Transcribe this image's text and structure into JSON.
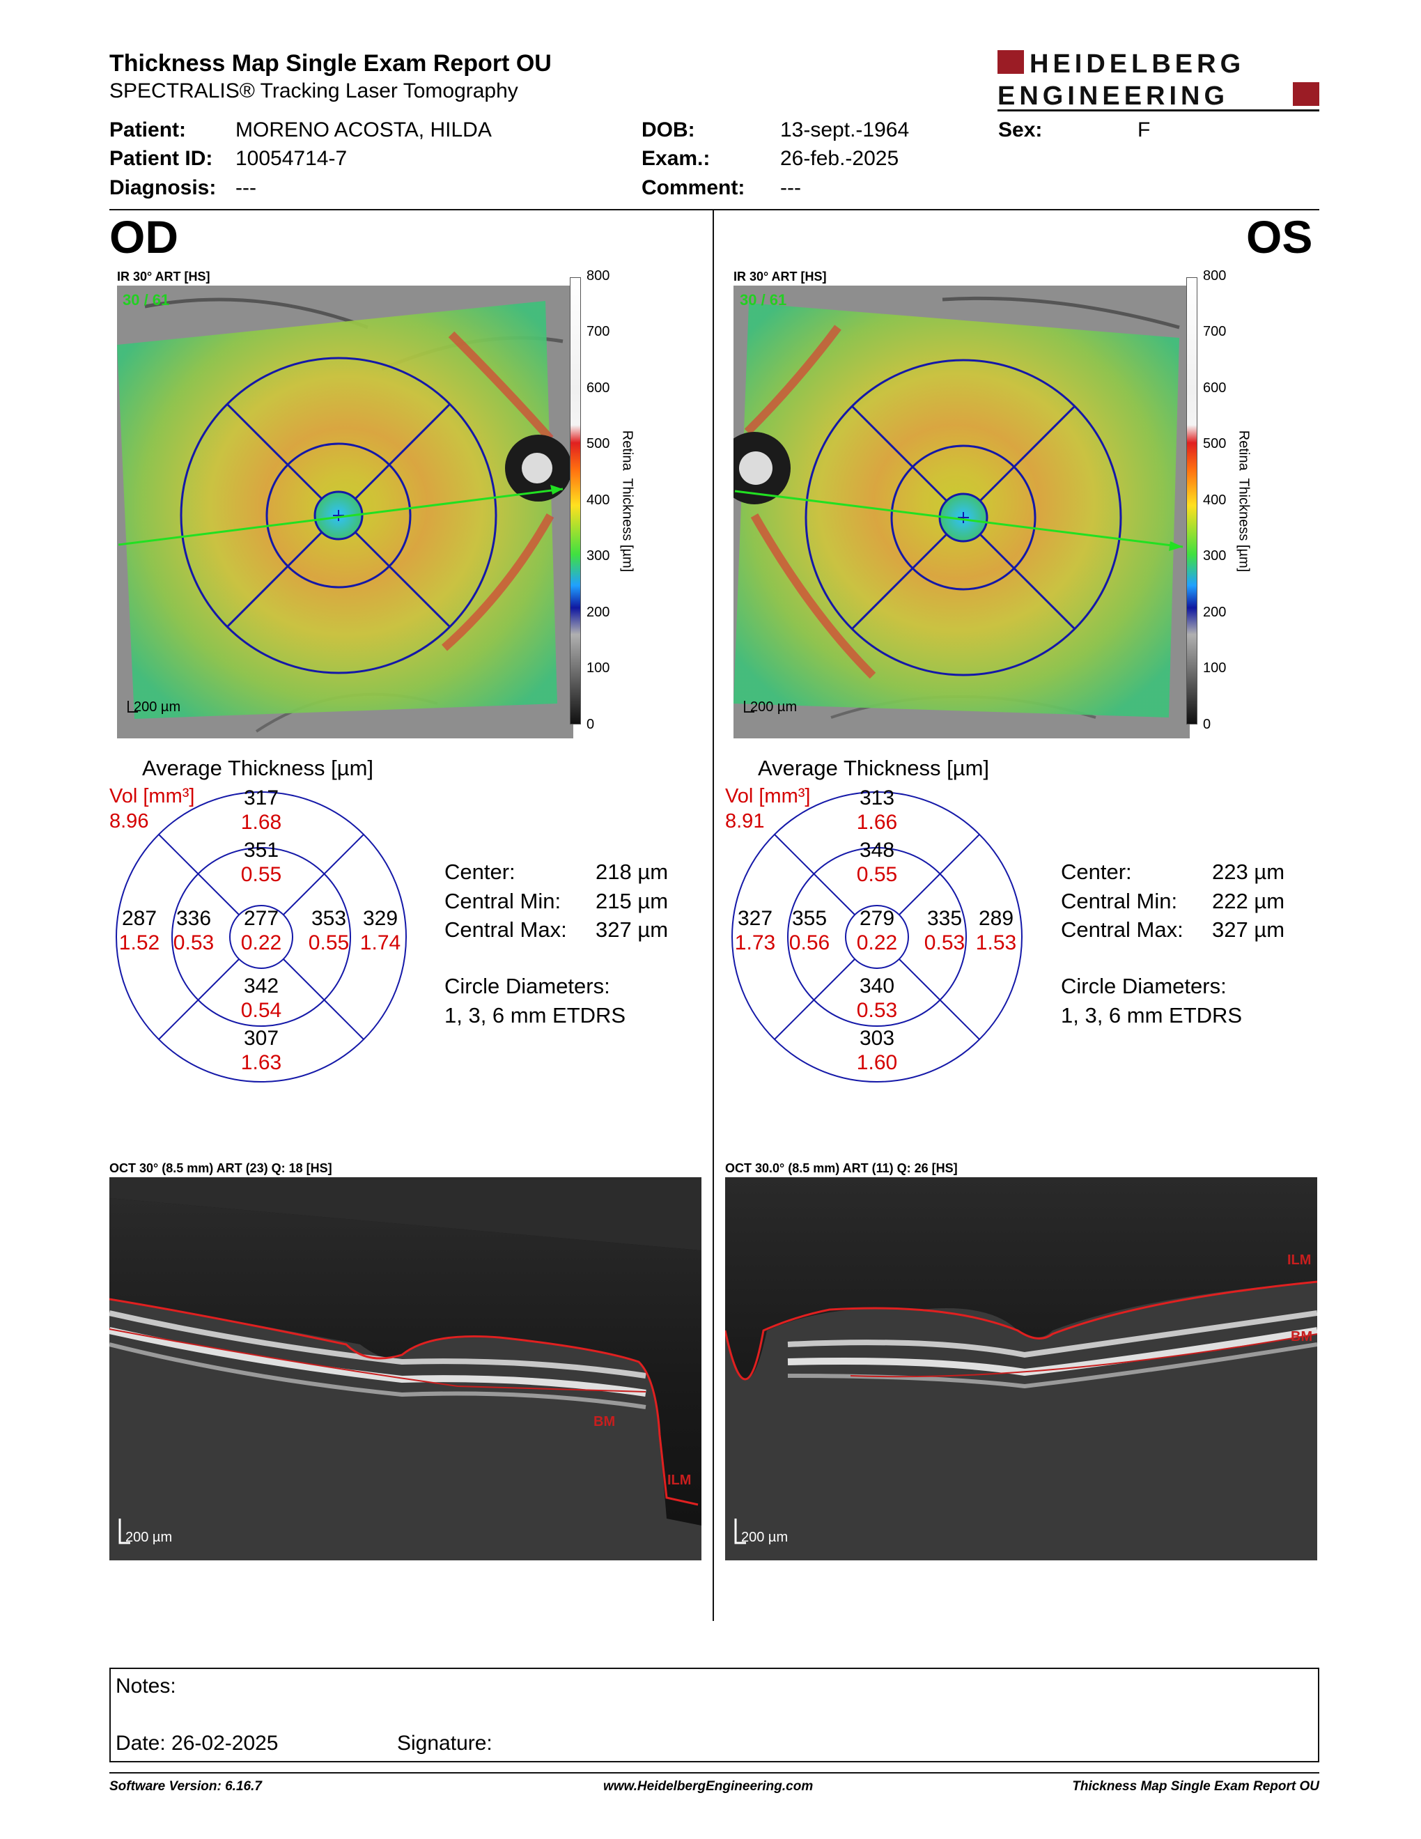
{
  "header": {
    "title": "Thickness Map Single Exam Report OU",
    "subtitle": "SPECTRALIS® Tracking Laser Tomography",
    "logo_text": "HEIDELBERG ENGINEERING",
    "brand_color": "#9b1c25"
  },
  "patient": {
    "patient_label": "Patient:",
    "patient_value": "MORENO ACOSTA, HILDA",
    "id_label": "Patient ID:",
    "id_value": "10054714-7",
    "diagnosis_label": "Diagnosis:",
    "diagnosis_value": "---",
    "dob_label": "DOB:",
    "dob_value": "13-sept.-1964",
    "exam_label": "Exam.:",
    "exam_value": "26-feb.-2025",
    "comment_label": "Comment:",
    "comment_value": "---",
    "sex_label": "Sex:",
    "sex_value": "F"
  },
  "scale": {
    "ticks": [
      "800",
      "700",
      "600",
      "500",
      "400",
      "300",
      "200",
      "100",
      "0"
    ],
    "label": "Retina  Thickness [µm]"
  },
  "od": {
    "eye": "OD",
    "ir_caption": "IR 30° ART [HS]",
    "ir_counter": "30 / 61",
    "ir_scalebar": "200 µm",
    "avg_title": "Average Thickness [µm]",
    "vol_label": "Vol [mm³]",
    "vol_value": "8.96",
    "etdrs": {
      "center": {
        "t": "277",
        "v": "0.22"
      },
      "inner_sup": {
        "t": "351",
        "v": "0.55"
      },
      "inner_inf": {
        "t": "342",
        "v": "0.54"
      },
      "inner_left": {
        "t": "336",
        "v": "0.53"
      },
      "inner_right": {
        "t": "353",
        "v": "0.55"
      },
      "outer_sup": {
        "t": "317",
        "v": "1.68"
      },
      "outer_inf": {
        "t": "307",
        "v": "1.63"
      },
      "outer_left": {
        "t": "287",
        "v": "1.52"
      },
      "outer_right": {
        "t": "329",
        "v": "1.74"
      }
    },
    "stats": {
      "center_label": "Center:",
      "center_value": "218 µm",
      "min_label": "Central Min:",
      "min_value": "215 µm",
      "max_label": "Central Max:",
      "max_value": "327 µm",
      "circle_label": "Circle Diameters:",
      "circle_value": "1, 3, 6 mm ETDRS"
    },
    "oct_caption": "OCT 30° (8.5 mm) ART (23) Q: 18 [HS]",
    "oct_scalebar": "200 µm",
    "oct_labels": {
      "ilm": "ILM",
      "bm": "BM"
    }
  },
  "os": {
    "eye": "OS",
    "ir_caption": "IR 30° ART [HS]",
    "ir_counter": "30 / 61",
    "ir_scalebar": "200 µm",
    "avg_title": "Average Thickness [µm]",
    "vol_label": "Vol [mm³]",
    "vol_value": "8.91",
    "etdrs": {
      "center": {
        "t": "279",
        "v": "0.22"
      },
      "inner_sup": {
        "t": "348",
        "v": "0.55"
      },
      "inner_inf": {
        "t": "340",
        "v": "0.53"
      },
      "inner_left": {
        "t": "355",
        "v": "0.56"
      },
      "inner_right": {
        "t": "335",
        "v": "0.53"
      },
      "outer_sup": {
        "t": "313",
        "v": "1.66"
      },
      "outer_inf": {
        "t": "303",
        "v": "1.60"
      },
      "outer_left": {
        "t": "327",
        "v": "1.73"
      },
      "outer_right": {
        "t": "289",
        "v": "1.53"
      }
    },
    "stats": {
      "center_label": "Center:",
      "center_value": "223 µm",
      "min_label": "Central Min:",
      "min_value": "222 µm",
      "max_label": "Central Max:",
      "max_value": "327 µm",
      "circle_label": "Circle Diameters:",
      "circle_value": "1, 3, 6 mm ETDRS"
    },
    "oct_caption": "OCT 30.0° (8.5 mm) ART (11) Q: 26 [HS]",
    "oct_scalebar": "200 µm",
    "oct_labels": {
      "ilm": "ILM",
      "bm": "BM"
    }
  },
  "notes": {
    "notes_label": "Notes:",
    "date_label": "Date: 26-02-2025",
    "signature_label": "Signature:"
  },
  "footer": {
    "software": "Software Version: 6.16.7",
    "website": "www.HeidelbergEngineering.com",
    "report_name": "Thickness Map Single Exam Report OU"
  }
}
